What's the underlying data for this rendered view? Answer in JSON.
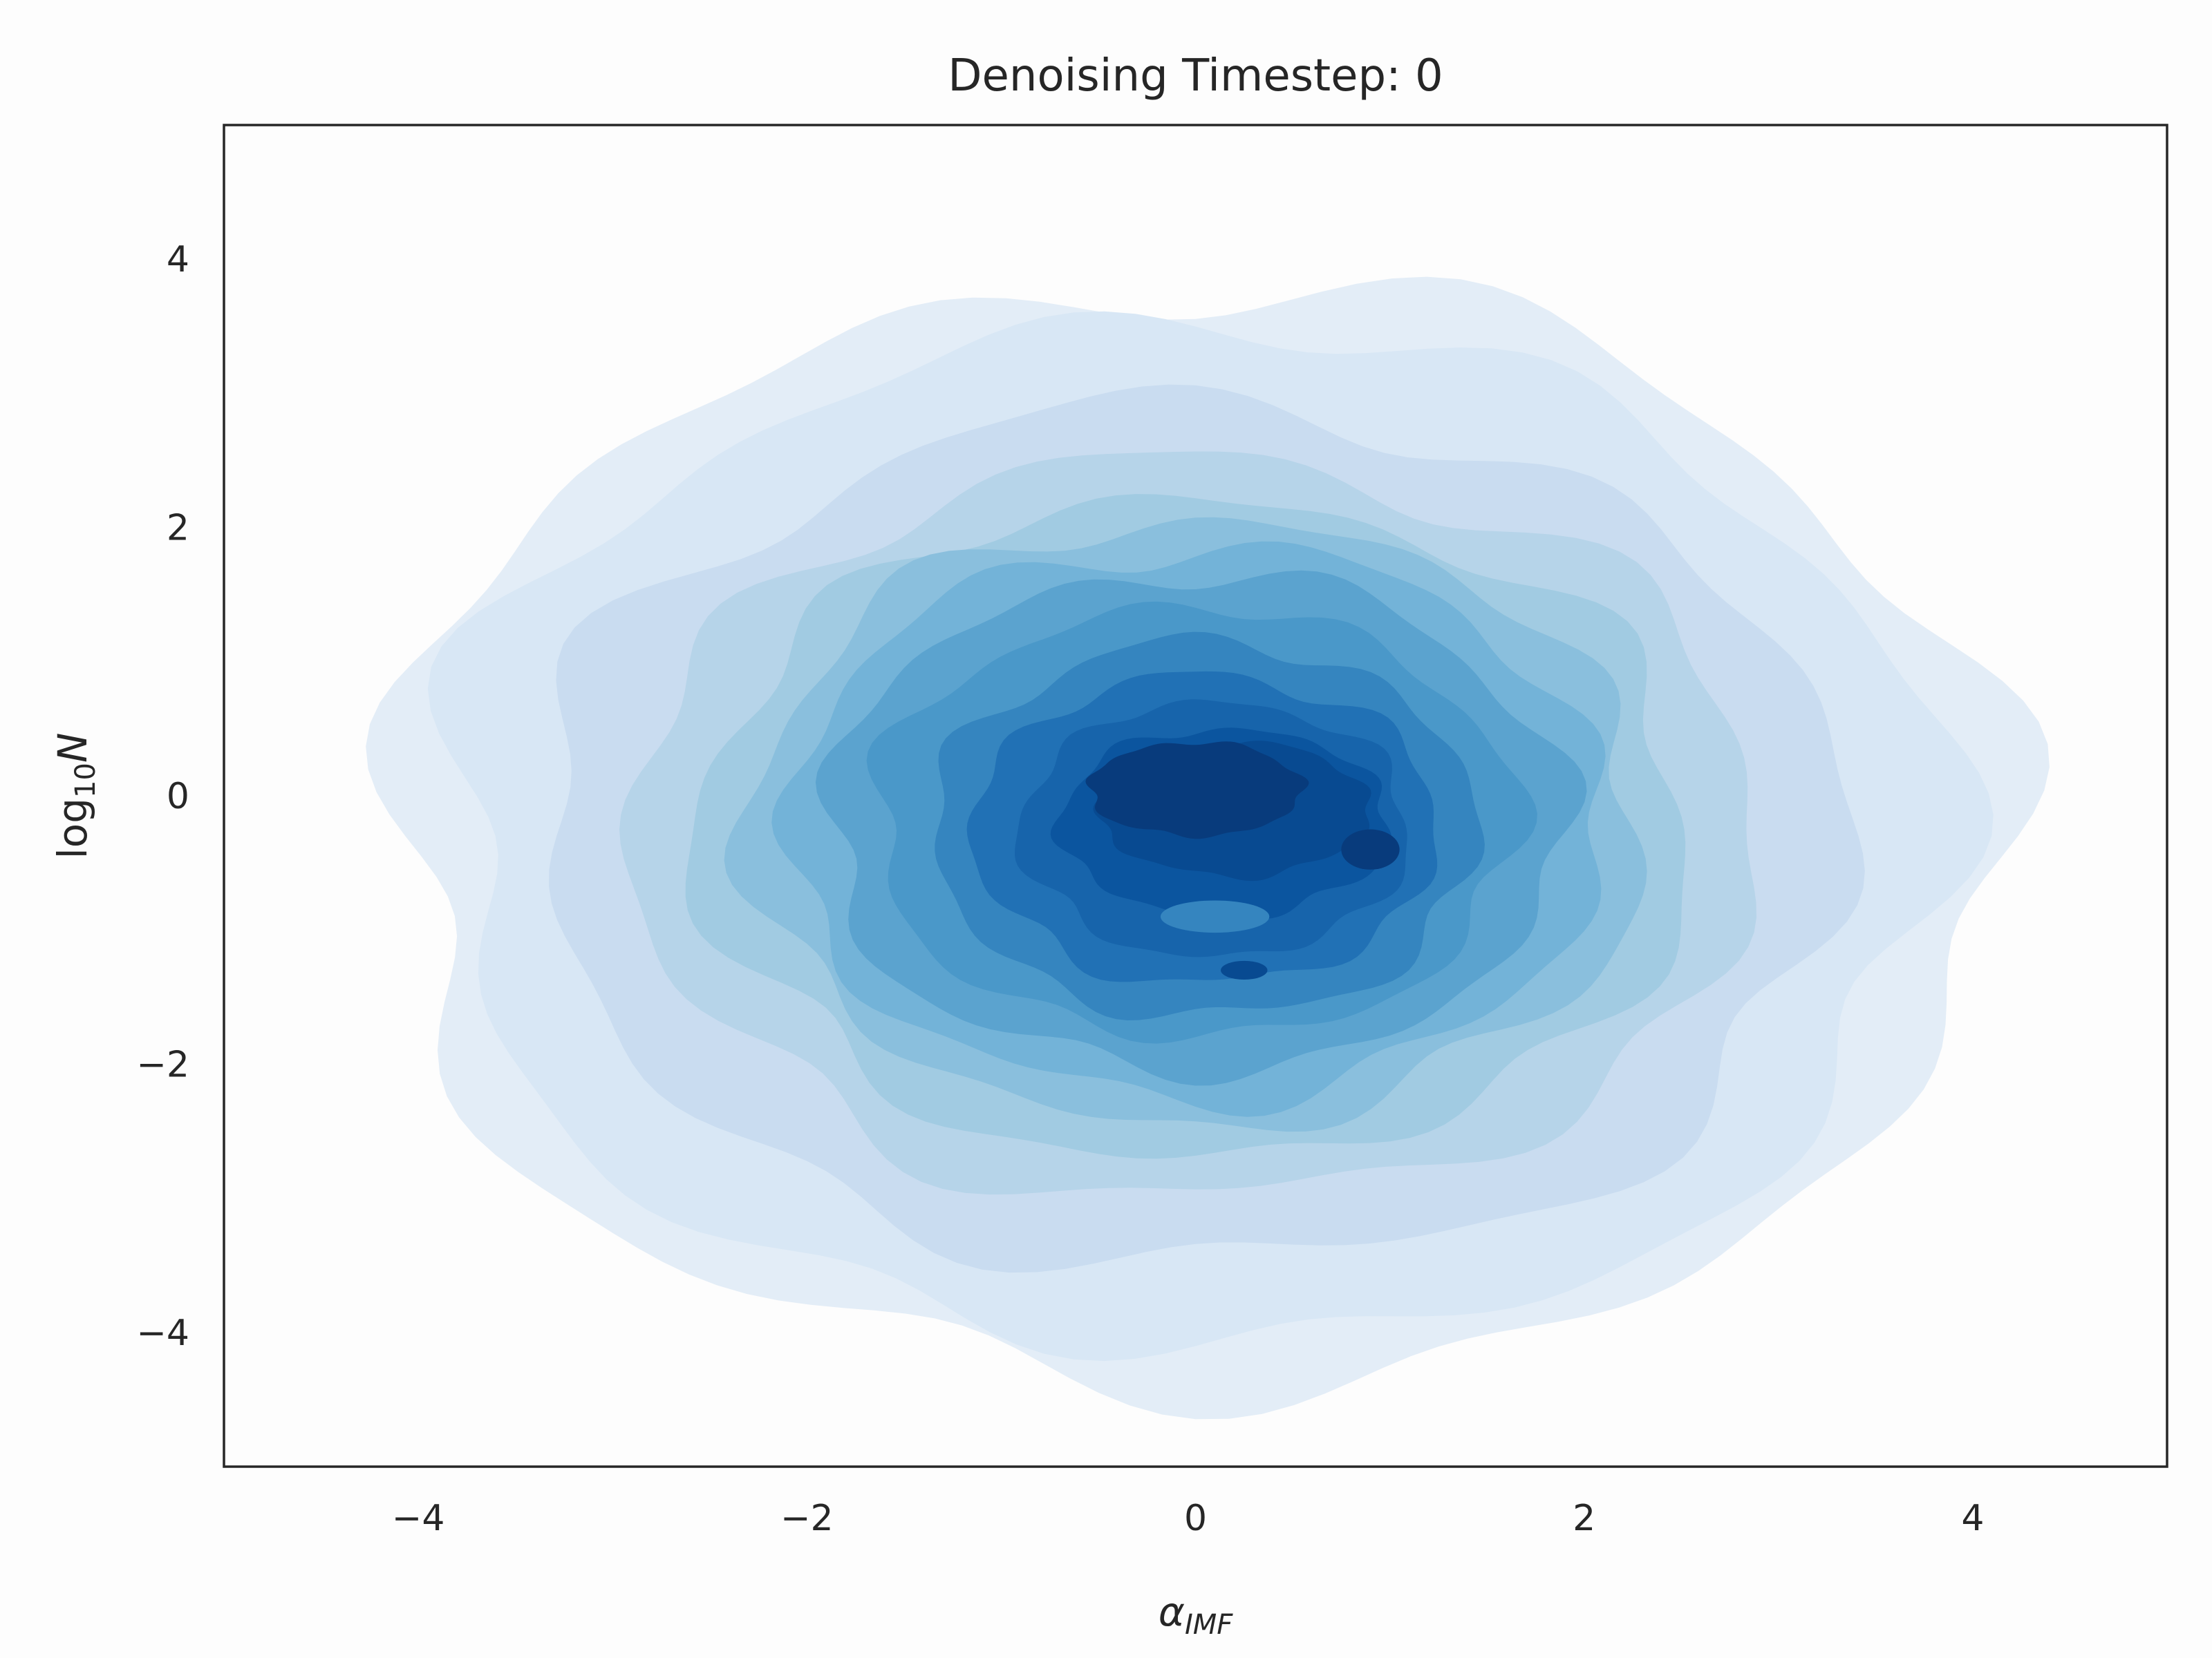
{
  "chart_data": {
    "type": "kde_contour",
    "title": "Denoising Timestep: 0",
    "xlabel": {
      "main": "α",
      "sub": "IMF"
    },
    "ylabel": {
      "main": "log",
      "sub": "10",
      "var": "N"
    },
    "xlim": [
      -5,
      5
    ],
    "ylim": [
      -5,
      5
    ],
    "xticks": [
      -4,
      -2,
      0,
      2,
      4
    ],
    "yticks": [
      -4,
      -2,
      0,
      2,
      4
    ],
    "xtick_labels": [
      "−4",
      "−2",
      "0",
      "2",
      "4"
    ],
    "ytick_labels": [
      "−4",
      "−2",
      "0",
      "2",
      "4"
    ],
    "grid": false,
    "colormap": "Blues",
    "levels": [
      {
        "cx": 0.0,
        "cy": -0.3,
        "rx": 4.15,
        "ry": 4.1,
        "color": "#e3edf7"
      },
      {
        "cx": 0.0,
        "cy": -0.3,
        "rx": 3.85,
        "ry": 3.8,
        "color": "#d8e7f5"
      },
      {
        "cx": 0.0,
        "cy": -0.3,
        "rx": 3.35,
        "ry": 3.2,
        "color": "#c9dcf0"
      },
      {
        "cx": 0.0,
        "cy": -0.25,
        "rx": 2.9,
        "ry": 2.75,
        "color": "#b6d4e9"
      },
      {
        "cx": 0.0,
        "cy": -0.25,
        "rx": 2.55,
        "ry": 2.45,
        "color": "#a1cbe2"
      },
      {
        "cx": 0.0,
        "cy": -0.2,
        "rx": 2.3,
        "ry": 2.25,
        "color": "#8abfdd"
      },
      {
        "cx": 0.0,
        "cy": -0.2,
        "rx": 2.1,
        "ry": 2.05,
        "color": "#73b3d8"
      },
      {
        "cx": 0.0,
        "cy": -0.2,
        "rx": 1.9,
        "ry": 1.85,
        "color": "#5ba3cf"
      },
      {
        "cx": 0.0,
        "cy": -0.2,
        "rx": 1.65,
        "ry": 1.6,
        "color": "#4a98c9"
      },
      {
        "cx": 0.05,
        "cy": -0.25,
        "rx": 1.4,
        "ry": 1.4,
        "color": "#3585bf"
      },
      {
        "cx": 0.05,
        "cy": -0.25,
        "rx": 1.2,
        "ry": 1.15,
        "color": "#2171b5"
      },
      {
        "cx": 0.1,
        "cy": -0.25,
        "rx": 1.0,
        "ry": 0.95,
        "color": "#1764ab"
      },
      {
        "cx": 0.15,
        "cy": -0.2,
        "rx": 0.85,
        "ry": 0.7,
        "color": "#0b559f"
      },
      {
        "cx": 0.2,
        "cy": -0.1,
        "rx": 0.7,
        "ry": 0.5,
        "color": "#084a91"
      },
      {
        "cx": 0.0,
        "cy": 0.05,
        "rx": 0.55,
        "ry": 0.35,
        "color": "#083b7c"
      }
    ],
    "extra_blobs": [
      {
        "cx": 0.1,
        "cy": -0.9,
        "rx": 0.28,
        "ry": 0.12,
        "color": "#3585bf"
      },
      {
        "cx": 0.9,
        "cy": -0.4,
        "rx": 0.15,
        "ry": 0.15,
        "color": "#083b7c"
      },
      {
        "cx": 0.25,
        "cy": -1.3,
        "rx": 0.12,
        "ry": 0.07,
        "color": "#084a91"
      }
    ]
  }
}
